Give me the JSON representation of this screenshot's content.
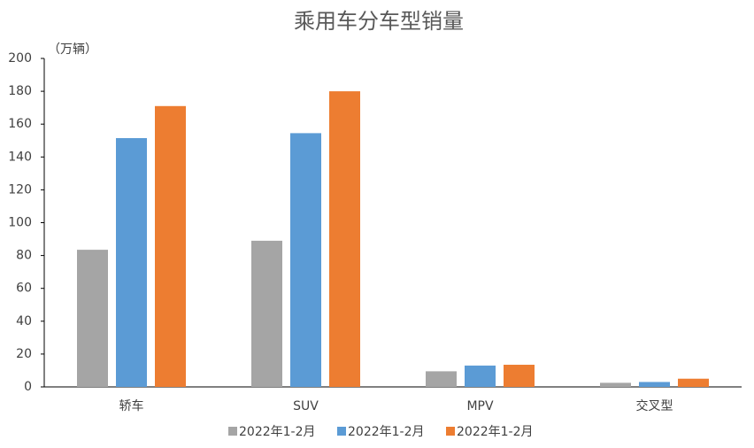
{
  "chart_data": {
    "type": "bar",
    "title": "乘用车分车型销量",
    "y_label": "（万辆）",
    "categories": [
      "轿车",
      "SUV",
      "MPV",
      "交叉型"
    ],
    "series": [
      {
        "name": "2022年1-2月",
        "color": "#a5a5a5",
        "values": [
          83.5,
          89,
          9.5,
          2.5
        ]
      },
      {
        "name": "2022年1-2月",
        "color": "#5b9bd5",
        "values": [
          151.5,
          154.5,
          13,
          3
        ]
      },
      {
        "name": "2022年1-2月",
        "color": "#ed7d31",
        "values": [
          171,
          180,
          13.5,
          5
        ]
      }
    ],
    "ylim": [
      0,
      200
    ],
    "yticks": [
      0,
      20,
      40,
      60,
      80,
      100,
      120,
      140,
      160,
      180,
      200
    ],
    "grid": false,
    "legend": "bottom"
  }
}
